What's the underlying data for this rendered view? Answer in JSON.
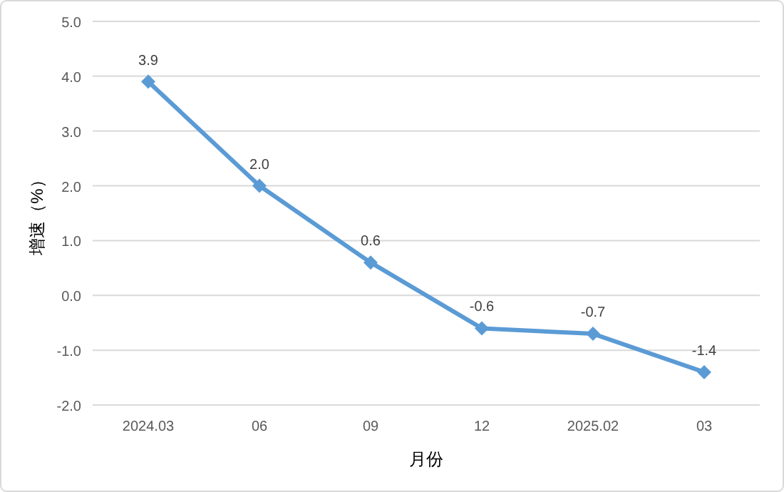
{
  "chart_data": {
    "type": "line",
    "xlabel": "月份",
    "ylabel": "增速（%）",
    "categories": [
      "2024.03",
      "06",
      "09",
      "12",
      "2025.02",
      "03"
    ],
    "values": [
      3.9,
      2.0,
      0.6,
      -0.6,
      -0.7,
      -1.4
    ],
    "value_labels": [
      "3.9",
      "2.0",
      "0.6",
      "-0.6",
      "-0.7",
      "-1.4"
    ],
    "color": "#5b9bd5",
    "marker": "diamond",
    "grid": "y",
    "ylim": [
      -2,
      5
    ],
    "yticks": [
      {
        "value": -2,
        "label": "-2.0"
      },
      {
        "value": -1,
        "label": "-1.0"
      },
      {
        "value": 0,
        "label": "0.0"
      },
      {
        "value": 1,
        "label": "1.0"
      },
      {
        "value": 2,
        "label": "2.0"
      },
      {
        "value": 3,
        "label": "3.0"
      },
      {
        "value": 4,
        "label": "4.0"
      },
      {
        "value": 5,
        "label": "5.0"
      }
    ]
  }
}
